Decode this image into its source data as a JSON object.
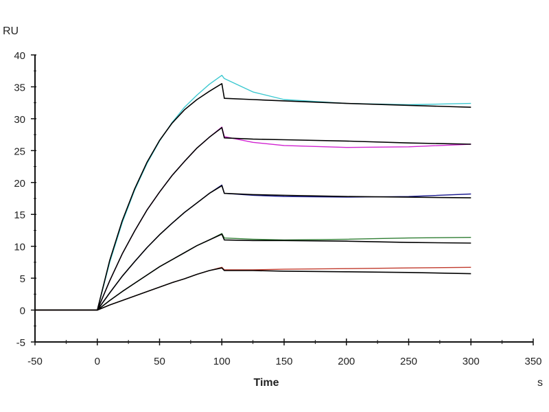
{
  "chart_data": {
    "type": "line",
    "title": "",
    "ylabel": "RU",
    "xlabel": "Time",
    "xunit": "s",
    "xlim": [
      -50,
      350
    ],
    "ylim": [
      -5,
      40
    ],
    "xticks": [
      -50,
      0,
      50,
      100,
      150,
      200,
      250,
      300,
      350
    ],
    "yticks": [
      -5,
      0,
      5,
      10,
      15,
      20,
      25,
      30,
      35,
      40
    ],
    "grid": false,
    "x": [
      -50,
      0,
      10,
      20,
      30,
      40,
      50,
      60,
      70,
      80,
      90,
      100,
      102,
      125,
      150,
      200,
      250,
      300
    ],
    "series": [
      {
        "color": "#3cc8d0",
        "values": [
          0,
          0,
          7.5,
          13.7,
          18.8,
          23.0,
          26.5,
          29.4,
          31.8,
          33.7,
          35.4,
          36.8,
          36.3,
          34.2,
          33.0,
          32.4,
          32.2,
          32.4
        ]
      },
      {
        "color": "#000000",
        "fit": true,
        "values": [
          0,
          0,
          7.8,
          14.0,
          19.0,
          23.2,
          26.6,
          29.3,
          31.4,
          33.0,
          34.3,
          35.5,
          33.2,
          33.0,
          32.8,
          32.4,
          32.1,
          31.8
        ]
      },
      {
        "color": "#d020d0",
        "values": [
          0,
          0,
          4.6,
          8.8,
          12.4,
          15.7,
          18.5,
          21.1,
          23.3,
          25.4,
          27.1,
          28.7,
          27.2,
          26.3,
          25.8,
          25.5,
          25.6,
          26.0
        ]
      },
      {
        "color": "#000000",
        "fit": true,
        "values": [
          0,
          0,
          4.6,
          8.8,
          12.4,
          15.7,
          18.5,
          21.1,
          23.3,
          25.4,
          27.1,
          28.6,
          27.0,
          26.8,
          26.7,
          26.5,
          26.2,
          26.0
        ]
      },
      {
        "color": "#1a1a90",
        "values": [
          0,
          0,
          2.7,
          5.3,
          7.6,
          9.8,
          11.8,
          13.6,
          15.3,
          16.8,
          18.3,
          19.6,
          18.3,
          18.0,
          17.8,
          17.7,
          17.8,
          18.2
        ]
      },
      {
        "color": "#000000",
        "fit": true,
        "values": [
          0,
          0,
          2.7,
          5.3,
          7.6,
          9.8,
          11.8,
          13.6,
          15.3,
          16.8,
          18.3,
          19.5,
          18.3,
          18.1,
          18.0,
          17.8,
          17.7,
          17.6
        ]
      },
      {
        "color": "#2e7d32",
        "values": [
          0,
          0,
          1.5,
          2.9,
          4.2,
          5.5,
          6.8,
          7.9,
          9.0,
          10.1,
          11.0,
          12.0,
          11.3,
          11.1,
          11.0,
          11.1,
          11.3,
          11.4
        ]
      },
      {
        "color": "#000000",
        "fit": true,
        "values": [
          0,
          0,
          1.5,
          2.9,
          4.2,
          5.5,
          6.8,
          7.9,
          9.0,
          10.1,
          11.0,
          11.9,
          11.0,
          10.9,
          10.9,
          10.8,
          10.6,
          10.5
        ]
      },
      {
        "color": "#c0392b",
        "values": [
          0,
          0,
          0.8,
          1.5,
          2.2,
          2.9,
          3.6,
          4.3,
          4.9,
          5.6,
          6.2,
          6.7,
          6.3,
          6.3,
          6.4,
          6.5,
          6.6,
          6.7
        ]
      },
      {
        "color": "#000000",
        "fit": true,
        "values": [
          0,
          0,
          0.8,
          1.5,
          2.2,
          2.9,
          3.6,
          4.3,
          4.9,
          5.6,
          6.2,
          6.6,
          6.2,
          6.2,
          6.1,
          6.0,
          5.9,
          5.7
        ]
      }
    ]
  }
}
